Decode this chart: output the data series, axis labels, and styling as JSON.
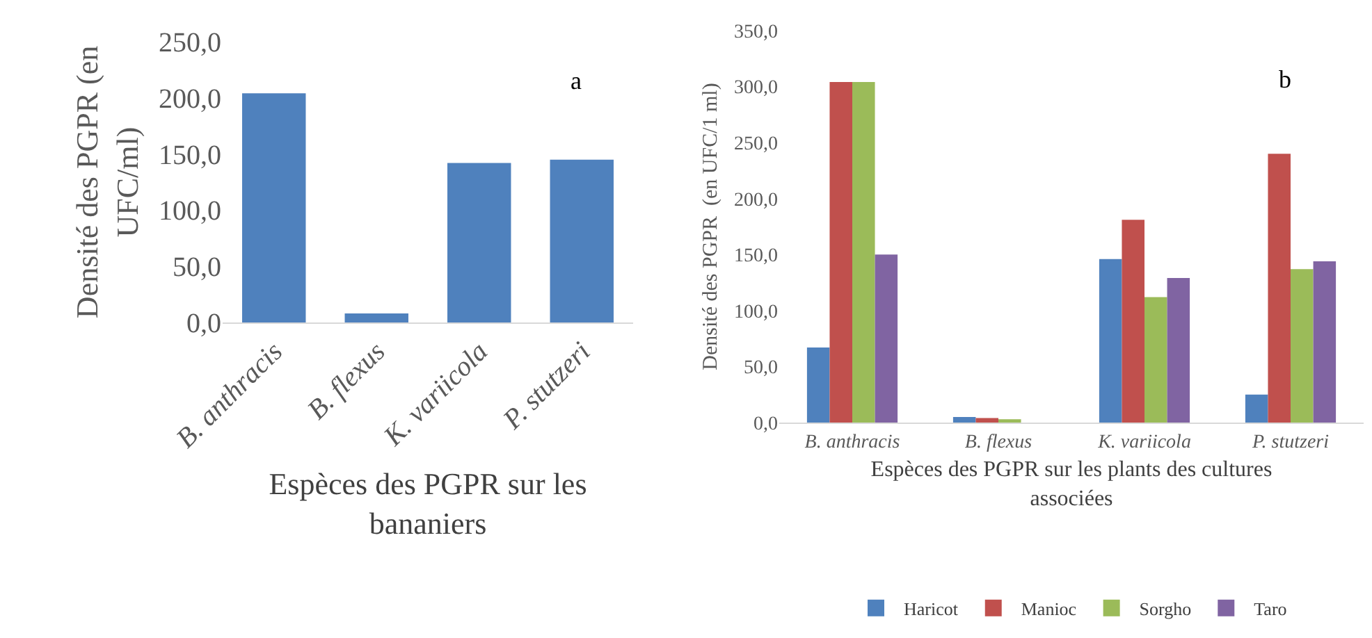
{
  "chart_data": [
    {
      "type": "bar",
      "categories": [
        "B. anthracis",
        "B. flexus",
        "K. variicola",
        "P. stutzeri"
      ],
      "xlabel": "Espèces des PGPR sur les bananiers",
      "ylabel": "Densité des PGPR (en UFC/ml)",
      "series": [
        {
          "color": "#4f81bd",
          "values": [
            204,
            8,
            142,
            145
          ]
        }
      ],
      "ylim": [
        0,
        250
      ],
      "yticks": [
        {
          "value": 0,
          "label": "0,0"
        },
        {
          "value": 50,
          "label": "50,0"
        },
        {
          "value": 100,
          "label": "100,0"
        },
        {
          "value": 150,
          "label": "150,0"
        },
        {
          "value": 200,
          "label": "200,0"
        },
        {
          "value": 250,
          "label": "250,0"
        }
      ],
      "grid": false,
      "legend": false,
      "annotations": [
        "a"
      ]
    },
    {
      "type": "bar",
      "categories": [
        "B. anthracis",
        "B. flexus",
        "K. variicola",
        "P. stutzeri"
      ],
      "xlabel": "Espèces des PGPR sur les plants des cultures associées",
      "ylabel": "Densité des PGPR  (en UFC/1 ml)",
      "series": [
        {
          "name": "Haricot",
          "color": "#4f81bd",
          "values": [
            67,
            5,
            146,
            25
          ]
        },
        {
          "name": "Manioc",
          "color": "#c0504d",
          "values": [
            304,
            4,
            181,
            240
          ]
        },
        {
          "name": "Sorgho",
          "color": "#9bbb59",
          "values": [
            304,
            3,
            112,
            137
          ]
        },
        {
          "name": "Taro",
          "color": "#8064a2",
          "values": [
            150,
            0,
            129,
            144
          ]
        }
      ],
      "ylim": [
        0,
        350
      ],
      "yticks": [
        {
          "value": 0,
          "label": "0,0"
        },
        {
          "value": 50,
          "label": "50,0"
        },
        {
          "value": 100,
          "label": "100,0"
        },
        {
          "value": 150,
          "label": "150,0"
        },
        {
          "value": 200,
          "label": "200,0"
        },
        {
          "value": 250,
          "label": "250,0"
        },
        {
          "value": 300,
          "label": "300,0"
        },
        {
          "value": 350,
          "label": "350,0"
        }
      ],
      "grid": false,
      "legend": "bottom",
      "annotations": [
        "b"
      ]
    }
  ]
}
